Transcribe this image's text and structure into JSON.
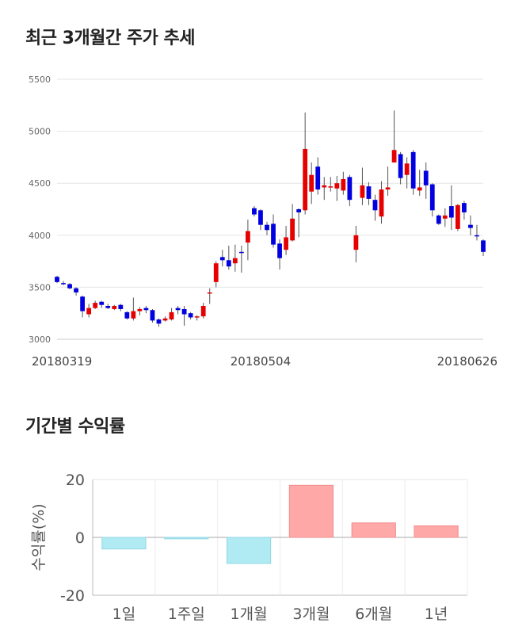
{
  "titles": {
    "price_trend": "최근 3개월간 주가 추세",
    "returns": "기간별 수익률"
  },
  "colors": {
    "up": "#e60000",
    "down": "#0000e0",
    "bar_positive": "#ffa8a8",
    "bar_negative": "#b0ebf3",
    "grid": "#e6e6e6"
  },
  "chart_data": [
    {
      "type": "candlestick",
      "title": "최근 3개월간 주가 추세",
      "ylim": [
        3000,
        5500
      ],
      "yticks": [
        3000,
        3500,
        4000,
        4500,
        5000,
        5500
      ],
      "xtick_labels": [
        "20180319",
        "20180504",
        "20180626"
      ],
      "xtick_index": [
        0,
        32,
        66
      ],
      "series": [
        [
          3600,
          3550,
          3610,
          3540
        ],
        [
          3540,
          3530,
          3560,
          3520
        ],
        [
          3530,
          3490,
          3540,
          3480
        ],
        [
          3490,
          3450,
          3500,
          3420
        ],
        [
          3410,
          3270,
          3420,
          3210
        ],
        [
          3240,
          3300,
          3340,
          3210
        ],
        [
          3300,
          3350,
          3370,
          3290
        ],
        [
          3360,
          3330,
          3370,
          3300
        ],
        [
          3320,
          3300,
          3340,
          3290
        ],
        [
          3290,
          3320,
          3330,
          3280
        ],
        [
          3330,
          3290,
          3340,
          3270
        ],
        [
          3260,
          3200,
          3270,
          3190
        ],
        [
          3200,
          3270,
          3400,
          3180
        ],
        [
          3270,
          3290,
          3310,
          3230
        ],
        [
          3300,
          3280,
          3320,
          3250
        ],
        [
          3280,
          3180,
          3290,
          3160
        ],
        [
          3190,
          3150,
          3200,
          3120
        ],
        [
          3180,
          3200,
          3220,
          3170
        ],
        [
          3190,
          3260,
          3300,
          3180
        ],
        [
          3300,
          3280,
          3320,
          3240
        ],
        [
          3290,
          3240,
          3320,
          3130
        ],
        [
          3250,
          3210,
          3260,
          3190
        ],
        [
          3220,
          3220,
          3230,
          3180
        ],
        [
          3220,
          3320,
          3350,
          3200
        ],
        [
          3450,
          3450,
          3490,
          3340
        ],
        [
          3550,
          3730,
          3750,
          3500
        ],
        [
          3790,
          3760,
          3860,
          3700
        ],
        [
          3760,
          3700,
          3900,
          3670
        ],
        [
          3730,
          3780,
          3910,
          3650
        ],
        [
          3840,
          3830,
          3900,
          3640
        ],
        [
          3930,
          4040,
          4150,
          3760
        ],
        [
          4260,
          4200,
          4280,
          4180
        ],
        [
          4240,
          4100,
          4250,
          4050
        ],
        [
          4100,
          4050,
          4130,
          4000
        ],
        [
          4110,
          3910,
          4200,
          3880
        ],
        [
          3920,
          3780,
          3960,
          3670
        ],
        [
          3860,
          3980,
          4090,
          3810
        ],
        [
          3950,
          4160,
          4300,
          3940
        ],
        [
          4250,
          4220,
          4260,
          3980
        ],
        [
          4240,
          4830,
          5180,
          4200
        ],
        [
          4420,
          4580,
          4700,
          4300
        ],
        [
          4660,
          4440,
          4750,
          4390
        ],
        [
          4460,
          4480,
          4560,
          4340
        ],
        [
          4470,
          4470,
          4560,
          4420
        ],
        [
          4450,
          4500,
          4570,
          4330
        ],
        [
          4430,
          4540,
          4610,
          4390
        ],
        [
          4560,
          4340,
          4580,
          4280
        ],
        [
          3860,
          4000,
          4090,
          3740
        ],
        [
          4360,
          4480,
          4650,
          4290
        ],
        [
          4470,
          4350,
          4510,
          4290
        ],
        [
          4340,
          4240,
          4390,
          4140
        ],
        [
          4180,
          4440,
          4520,
          4110
        ],
        [
          4440,
          4460,
          4660,
          4380
        ],
        [
          4700,
          4820,
          5200,
          4700
        ],
        [
          4780,
          4550,
          4800,
          4490
        ],
        [
          4580,
          4690,
          4750,
          4450
        ],
        [
          4800,
          4450,
          4820,
          4390
        ],
        [
          4430,
          4460,
          4630,
          4380
        ],
        [
          4620,
          4480,
          4700,
          4350
        ],
        [
          4490,
          4240,
          4500,
          4180
        ],
        [
          4190,
          4110,
          4200,
          4100
        ],
        [
          4160,
          4190,
          4260,
          4080
        ],
        [
          4280,
          4170,
          4480,
          4050
        ],
        [
          4060,
          4290,
          4300,
          4040
        ],
        [
          4310,
          4220,
          4330,
          4150
        ],
        [
          4100,
          4070,
          4190,
          4000
        ],
        [
          4000,
          3990,
          4100,
          3950
        ],
        [
          3950,
          3840,
          3960,
          3800
        ]
      ]
    },
    {
      "type": "bar",
      "title": "기간별 수익률",
      "ylabel": "수익률(%)",
      "categories": [
        "1일",
        "1주일",
        "1개월",
        "3개월",
        "6개월",
        "1년"
      ],
      "values": [
        -4.0,
        -0.5,
        -9.0,
        18.0,
        5.0,
        4.0
      ],
      "ylim": [
        -20,
        20
      ],
      "yticks": [
        -20,
        0,
        20
      ]
    }
  ]
}
